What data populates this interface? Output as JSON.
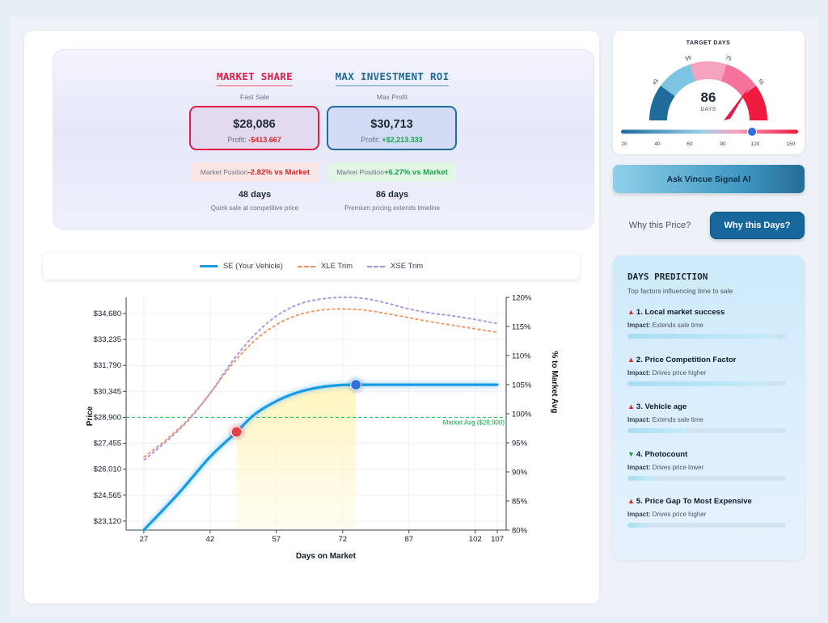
{
  "summary": {
    "left": {
      "title": "MARKET SHARE",
      "subtitle": "Fast Sale",
      "price": "$28,086",
      "profit_label": "Profit:",
      "profit_value": "-$413.667",
      "position_label": "Market Position",
      "position_value": "-2.82% vs Market",
      "days": "48 days",
      "days_note": "Quick sale at competitive price"
    },
    "right": {
      "title": "MAX INVESTMENT ROI",
      "subtitle": "Max Profit",
      "price": "$30,713",
      "profit_label": "Profit:",
      "profit_value": "+$2,213.333",
      "position_label": "Market Position",
      "position_value": "+6.27% vs Market",
      "days": "86 days",
      "days_note": "Premium pricing extends timeline"
    }
  },
  "legend": {
    "items": [
      {
        "label": "SE (Your Vehicle)",
        "color": "#1a9be6",
        "style": "solid"
      },
      {
        "label": "XLE Trim",
        "color": "#f0935a",
        "style": "dashed"
      },
      {
        "label": "XSE Trim",
        "color": "#a98be8",
        "style": "dashed"
      }
    ]
  },
  "chart_data": {
    "type": "line",
    "xlabel": "Days on Market",
    "ylabel": "Price",
    "y2label": "% to Market Avg",
    "x_ticks": [
      27,
      42,
      57,
      72,
      87,
      102,
      107
    ],
    "x_range": [
      23,
      109
    ],
    "y_ticks": [
      "$23,120",
      "$24,565",
      "$26,010",
      "$27,455",
      "$28,900",
      "$30,345",
      "$31,790",
      "$33,235",
      "$34,680"
    ],
    "y_range": [
      22620,
      35580
    ],
    "y2_ticks": [
      "80%",
      "85%",
      "90%",
      "95%",
      "100%",
      "105%",
      "110%",
      "115%",
      "120%"
    ],
    "y2_range": [
      80,
      120
    ],
    "grid": true,
    "reference_line": {
      "label": "Market Avg ($28,900)",
      "y": 28900,
      "color": "#22c55e"
    },
    "series": [
      {
        "name": "SE (Your Vehicle)",
        "axis": "price",
        "color": "#1a9be6",
        "x": [
          27,
          35,
          42,
          48,
          52,
          57,
          62,
          67,
          72,
          75,
          80,
          90,
          100,
          107
        ],
        "y": [
          22620,
          24700,
          26700,
          28086,
          29050,
          29800,
          30300,
          30580,
          30700,
          30713,
          30713,
          30713,
          30713,
          30713
        ]
      },
      {
        "name": "XLE Trim",
        "axis": "percent",
        "color": "#f0935a",
        "x": [
          27,
          32,
          37,
          42,
          47,
          52,
          57,
          62,
          67,
          72,
          77,
          82,
          87,
          92,
          97,
          102,
          107
        ],
        "y": [
          92.5,
          95.5,
          99.0,
          103.5,
          108.5,
          112.5,
          115.3,
          117.0,
          117.8,
          118.0,
          117.8,
          117.2,
          116.5,
          115.8,
          115.2,
          114.6,
          114.0
        ]
      },
      {
        "name": "XSE Trim",
        "axis": "percent",
        "color": "#a98be8",
        "x": [
          27,
          32,
          37,
          42,
          47,
          52,
          57,
          62,
          67,
          72,
          77,
          82,
          87,
          92,
          97,
          102,
          107
        ],
        "y": [
          92.0,
          95.2,
          98.8,
          103.5,
          109.0,
          113.5,
          116.8,
          118.8,
          119.7,
          120.0,
          119.8,
          119.0,
          118.0,
          117.3,
          116.8,
          116.2,
          115.5
        ]
      }
    ],
    "markers": [
      {
        "x": 48,
        "y": 28086,
        "color": "#e53e4a"
      },
      {
        "x": 75,
        "y": 30713,
        "color": "#2f6fe0"
      }
    ],
    "highlight": {
      "x_start": 48,
      "x_end": 75
    }
  },
  "gauge": {
    "title": "TARGET DAYS",
    "value": 86,
    "value_unit": "DAYS",
    "scale_labels": [
      "43",
      "59",
      "75",
      "91"
    ],
    "slider_labels": [
      "20",
      "40",
      "60",
      "90",
      "120",
      "150"
    ],
    "slider_fraction": 0.74
  },
  "ask_button": "Ask Vincue Signal AI",
  "why_price": "Why this Price?",
  "why_days": "Why this Days?",
  "prediction": {
    "title": "DAYS PREDICTION",
    "subtitle": "Top factors influencing time to sale",
    "impact_label": "Impact:",
    "factors": [
      {
        "name": "1. Local market success",
        "direction": "up",
        "impact": "Extends sale time",
        "strength": 0.95
      },
      {
        "name": "2. Price Competition Factor",
        "direction": "up",
        "impact": "Drives price higher",
        "strength": 0.88
      },
      {
        "name": "3. Vehicle age",
        "direction": "up",
        "impact": "Extends sale time",
        "strength": 0.38
      },
      {
        "name": "4. Photocount",
        "direction": "down",
        "impact": "Drives price lower",
        "strength": 0.18
      },
      {
        "name": "5. Price Gap To Most Expensive",
        "direction": "up",
        "impact": "Drives price higher",
        "strength": 0.13
      }
    ]
  }
}
